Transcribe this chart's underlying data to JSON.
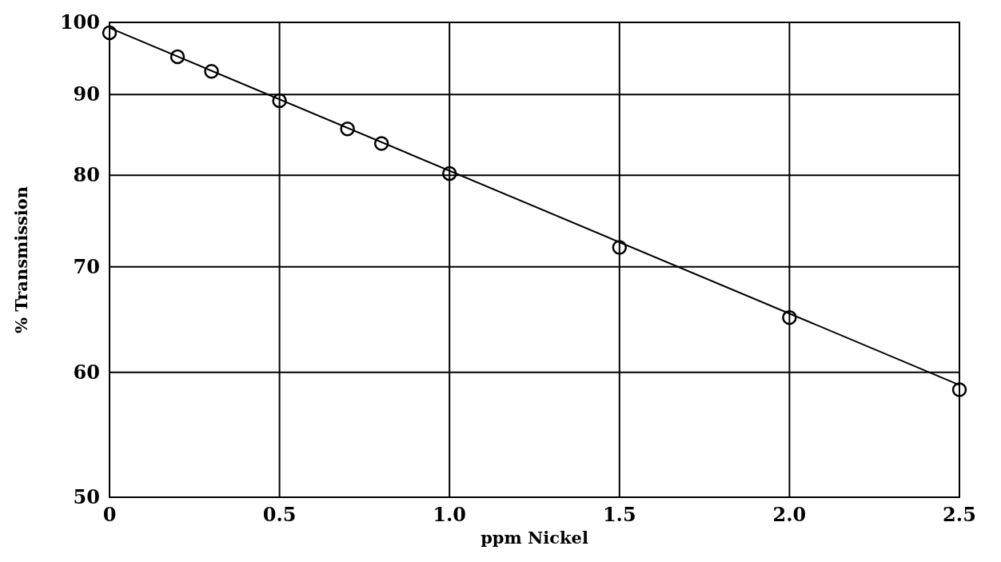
{
  "chart_data": {
    "type": "scatter",
    "xlabel": "ppm Nickel",
    "ylabel": "% Transmission",
    "log": "y",
    "grid": true,
    "marker": "circle",
    "xlim": [
      0,
      2.5
    ],
    "ylim": [
      50,
      100
    ],
    "xticks": [
      0,
      {
        "value": 0.5,
        "label": "0.5"
      },
      {
        "value": 1,
        "label": "1.0"
      },
      {
        "value": 1.5,
        "label": "1.5"
      },
      {
        "value": 2,
        "label": "2.0"
      },
      {
        "value": 2.5,
        "label": "2.5"
      }
    ],
    "yticks": [
      50,
      60,
      70,
      80,
      90,
      100
    ],
    "series": [
      {
        "color": "#000000",
        "x": [
          0,
          0.2,
          0.3,
          0.5,
          0.7,
          0.8,
          1.0,
          1.5,
          2.0,
          2.5
        ],
        "values": [
          98.5,
          95.1,
          93.1,
          89.2,
          85.6,
          83.8,
          80.2,
          72.0,
          65.0,
          58.5
        ]
      },
      {
        "type": "line",
        "color": "#000000",
        "marker": "none",
        "x": [
          0,
          2.5
        ],
        "values": [
          99.2,
          58.9
        ]
      }
    ]
  }
}
